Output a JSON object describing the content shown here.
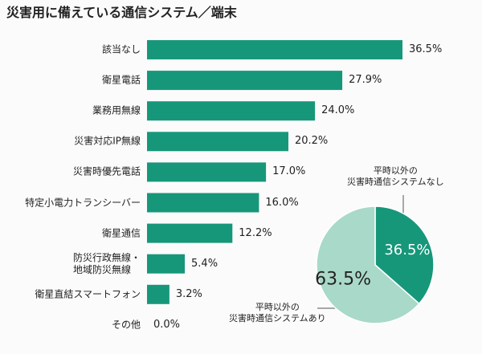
{
  "chart_data": [
    {
      "type": "hbar",
      "title": "災害用に備えている通信システム／端末",
      "categories": [
        "該当なし",
        "衛星電話",
        "業務用無線",
        "災害対応IP無線",
        "災害時優先電話",
        "特定小電力トランシーバー",
        "衛星通信",
        "防災行政無線・\n地域防災無線",
        "衛星直結スマートフォン",
        "その他"
      ],
      "values": [
        36.5,
        27.9,
        24.0,
        20.2,
        17.0,
        16.0,
        12.2,
        5.4,
        3.2,
        0.0
      ],
      "value_labels": [
        "36.5%",
        "27.9%",
        "24.0%",
        "20.2%",
        "17.0%",
        "16.0%",
        "12.2%",
        "5.4%",
        "3.2%",
        "0.0%"
      ],
      "color": "#17977a"
    },
    {
      "type": "pie",
      "categories": [
        "平時以外の\n災害時通信システムなし",
        "平時以外の\n災害時通信システムあり"
      ],
      "values": [
        36.5,
        63.5
      ],
      "value_labels": [
        "36.5%",
        "63.5%"
      ],
      "colors": [
        "#17977a",
        "#a9d9c8"
      ]
    }
  ]
}
